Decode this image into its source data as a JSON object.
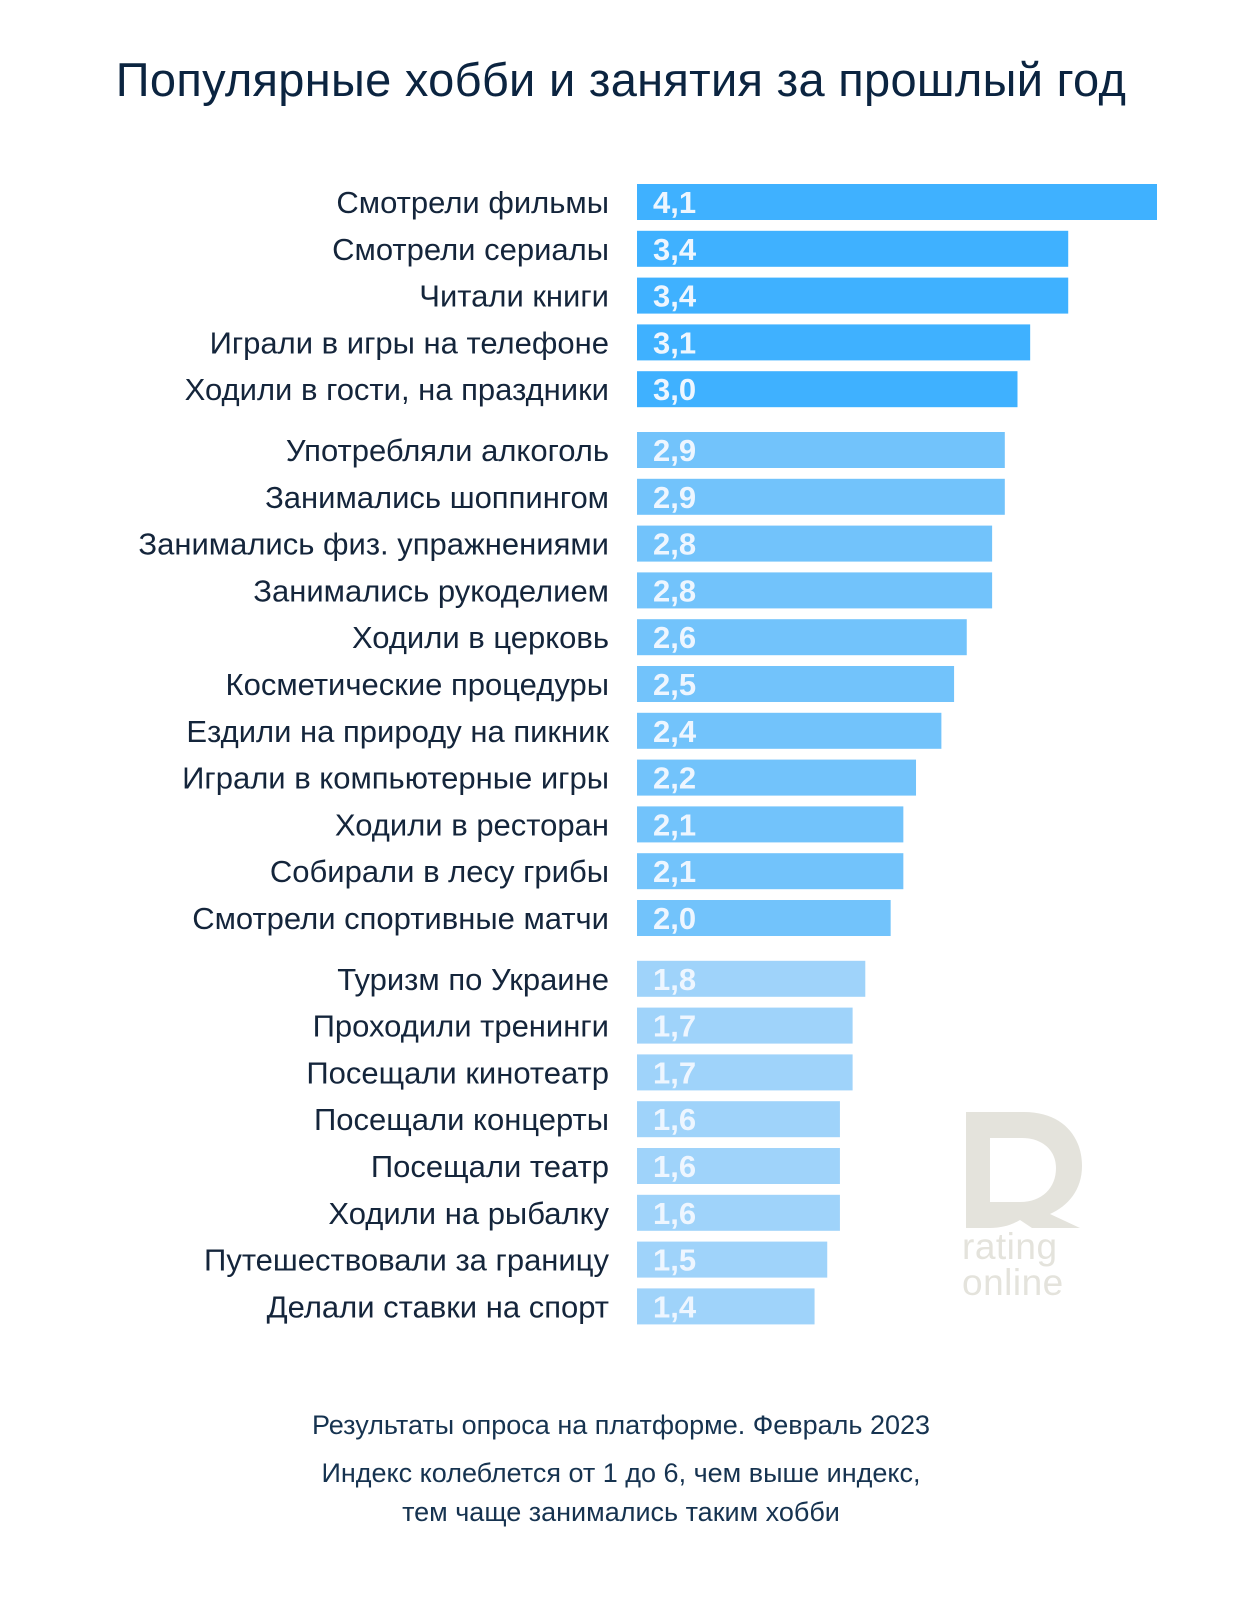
{
  "header": {
    "title": "Популярные хобби и занятия за прошлый год"
  },
  "chart_data": {
    "type": "bar",
    "orientation": "horizontal",
    "title": "Популярные хобби и занятия за прошлый год",
    "xlabel": "",
    "ylabel": "",
    "xlim": [
      0,
      4.1
    ],
    "grid": false,
    "categories": [
      "Смотрели фильмы",
      "Смотрели сериалы",
      "Читали книги",
      "Играли в игры на телефоне",
      "Ходили в гости, на праздники",
      "Употребляли алкоголь",
      "Занимались шоппингом",
      "Занимались физ. упражнениями",
      "Занимались рукоделием",
      "Ходили в церковь",
      "Косметические процедуры",
      "Ездили на природу на пикник",
      "Играли в компьютерные игры",
      "Ходили в ресторан",
      "Собирали в лесу грибы",
      "Смотрели спортивные матчи",
      "Туризм по Украине",
      "Проходили тренинги",
      "Посещали кинотеатр",
      "Посещали концерты",
      "Посещали театр",
      "Ходили на рыбалку",
      "Путешествовали за границу",
      "Делали ставки на спорт"
    ],
    "values": [
      4.1,
      3.4,
      3.4,
      3.1,
      3.0,
      2.9,
      2.9,
      2.8,
      2.8,
      2.6,
      2.5,
      2.4,
      2.2,
      2.1,
      2.1,
      2.0,
      1.8,
      1.7,
      1.7,
      1.6,
      1.6,
      1.6,
      1.5,
      1.4
    ],
    "value_labels": [
      "4,1",
      "3,4",
      "3,4",
      "3,1",
      "3,0",
      "2,9",
      "2,9",
      "2,8",
      "2,8",
      "2,6",
      "2,5",
      "2,4",
      "2,2",
      "2,1",
      "2,1",
      "2,0",
      "1,8",
      "1,7",
      "1,7",
      "1,6",
      "1,6",
      "1,6",
      "1,5",
      "1,4"
    ],
    "groups": [
      {
        "start": 0,
        "end": 4,
        "color": "#3fb1ff"
      },
      {
        "start": 5,
        "end": 15,
        "color": "#72c3fb"
      },
      {
        "start": 16,
        "end": 23,
        "color": "#9fd3fa"
      }
    ]
  },
  "watermark": {
    "line1": "rating",
    "line2": "online",
    "color": "#e4e3dc"
  },
  "footer": {
    "line1": "Результаты опроса на платформе. Февраль 2023",
    "line2": "Индекс колеблется от 1 до 6, чем выше индекс,",
    "line3": "тем чаще занимались таким хобби"
  }
}
